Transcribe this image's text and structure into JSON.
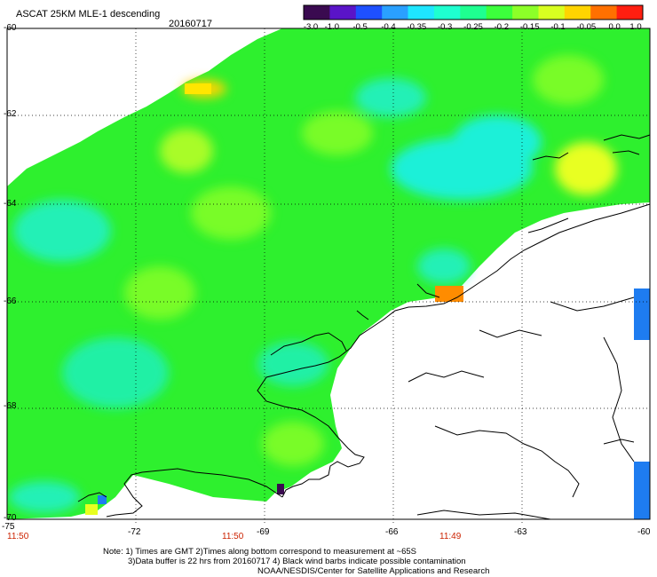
{
  "header": {
    "title": "ASCAT 25KM MLE-1 descending",
    "date": "20160717"
  },
  "colorbar": {
    "tick_labels": [
      "-3.0",
      "-1.0",
      "-0.5",
      "-0.4",
      "-0.35",
      "-0.3",
      "-0.25",
      "-0.2",
      "-0.15",
      "-0.1",
      "-0.05",
      "0.0",
      "1.0"
    ],
    "colors": [
      "#3a0a50",
      "#5a14c8",
      "#1e50ff",
      "#2aa0ff",
      "#1ee6ff",
      "#1effd0",
      "#1eff90",
      "#3cff3c",
      "#8cff28",
      "#d8ff20",
      "#ffd400",
      "#ff7000",
      "#ff1e10"
    ]
  },
  "lat_labels": [
    "-60",
    "-62",
    "-64",
    "-66",
    "-68",
    "-70"
  ],
  "lon_labels": [
    "-75",
    "-72",
    "-69",
    "-66",
    "-63",
    "-60"
  ],
  "time_labels": [
    "11:50",
    "11:50",
    "11:49"
  ],
  "notes": {
    "line1": "Note: 1) Times are GMT 2)Times along bottom correspond to measurement at ~65S",
    "line2": "3)Data buffer is 22 hrs from 20160717 4) Black wind barbs indicate possible contamination",
    "line3": "NOAA/NESDIS/Center for Satellite Applications and Research"
  },
  "palette": {
    "swath_base": "#2ef02e",
    "swath_cyan": "#1ef0d8",
    "swath_yellow": "#e8ff20",
    "swath_orange": "#ff8c00",
    "swath_blue": "#1e7cf0",
    "coast": "#000000"
  }
}
